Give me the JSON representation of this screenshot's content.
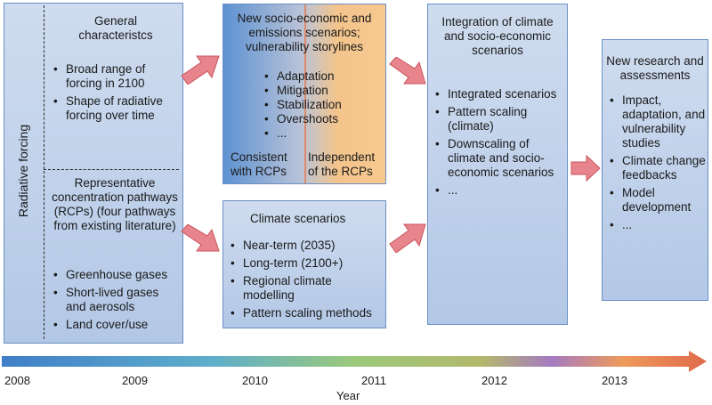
{
  "box1": {
    "side_label": "Radiative forcing",
    "top_title": "General characteristcs",
    "top_items": [
      "Broad range of forcing in 2100",
      "Shape of radiative forcing over time"
    ],
    "bottom_title": "Representative concentration pathways (RCPs) (four pathways from existing literature)",
    "bottom_items": [
      "Greenhouse gases",
      "Short-lived gases and aerosols",
      "Land cover/use"
    ]
  },
  "box2": {
    "title": "New socio-economic and emissions scenarios; vulnerability storylines",
    "items": [
      "Adaptation",
      "Mitigation",
      "Stabilization",
      "Overshoots",
      "..."
    ],
    "left_label": "Consistent with RCPs",
    "right_label": "Independent of the RCPs"
  },
  "box3": {
    "title": "Climate scenarios",
    "items": [
      "Near-term (2035)",
      "Long-term (2100+)",
      "Regional climate modelling",
      "Pattern scaling methods"
    ]
  },
  "box4": {
    "title": "Integration of climate and socio-economic scenarios",
    "items": [
      "Integrated scenarios",
      "Pattern scaling (climate)",
      "Downscaling of climate and socio-economic scenarios",
      "..."
    ]
  },
  "box5": {
    "title": "New research and assessments",
    "items": [
      "Impact, adaptation, and vulnerability studies",
      "Climate change feedbacks",
      "Model development",
      "..."
    ]
  },
  "timeline": {
    "ticks": [
      "2008",
      "2009",
      "2010",
      "2011",
      "2012",
      "2013"
    ],
    "axis_label": "Year"
  },
  "colors": {
    "box_fill_top": "#cfdcef",
    "box_fill_bottom": "#b3c8e6",
    "box_border": "#6a8fc4",
    "arrow_fill": "#e8848c",
    "arrow_stroke": "#c85560",
    "orange_panel": "#f6c48a"
  }
}
